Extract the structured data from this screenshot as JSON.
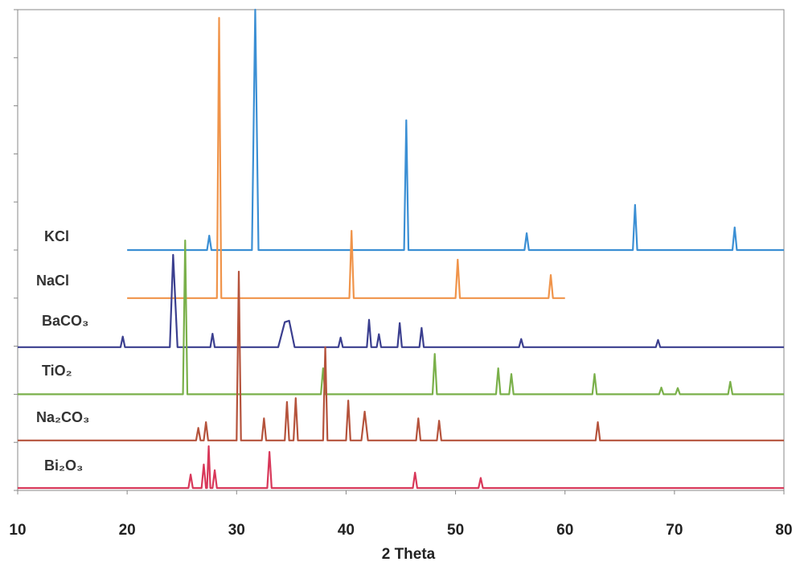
{
  "chart_data": {
    "type": "line",
    "xlabel": "2 Theta",
    "xlim": [
      10,
      80
    ],
    "xticks": [
      10,
      20,
      30,
      40,
      50,
      60,
      70,
      80
    ],
    "ylim": [
      0,
      100
    ],
    "series": [
      {
        "name": "KCl",
        "color": "#3b8fd4",
        "x": [
          20,
          27.3,
          27.5,
          27.7,
          31.4,
          31.7,
          32.0,
          45.3,
          45.5,
          45.7,
          56.3,
          56.5,
          56.7,
          66.2,
          66.4,
          66.6,
          75.3,
          75.5,
          75.7,
          80
        ],
        "values": [
          50,
          50,
          53,
          50,
          50,
          100,
          50,
          50,
          77,
          50,
          50,
          53.5,
          50,
          50,
          59.4,
          50,
          50,
          54.7,
          50,
          50
        ]
      },
      {
        "name": "NaCl",
        "color": "#f0944a",
        "x": [
          20,
          28.2,
          28.4,
          28.6,
          40.3,
          40.5,
          40.7,
          50,
          50.2,
          50.4,
          58.5,
          58.7,
          58.9,
          60
        ],
        "values": [
          40,
          40,
          98.3,
          40,
          40,
          54,
          40,
          40,
          48,
          40,
          40,
          44.8,
          40,
          40
        ]
      },
      {
        "name": "BaCO₃",
        "color": "#3b3f8f",
        "x": [
          10,
          19.4,
          19.6,
          19.8,
          23.9,
          24.2,
          24.6,
          27.6,
          27.8,
          28,
          33.8,
          34.4,
          34.8,
          35.3,
          39.3,
          39.5,
          39.7,
          41.9,
          42.1,
          42.3,
          42.8,
          43,
          43.2,
          44.7,
          44.9,
          45.1,
          46.7,
          46.9,
          47.1,
          55.8,
          56,
          56.2,
          68.3,
          68.5,
          68.7,
          80
        ],
        "values": [
          29.8,
          29.8,
          32,
          29.8,
          29.8,
          49,
          29.8,
          29.8,
          32.6,
          29.8,
          29.8,
          35,
          35.3,
          29.8,
          29.8,
          31.8,
          29.8,
          29.8,
          35.5,
          29.8,
          29.8,
          32.5,
          29.8,
          29.8,
          34.8,
          29.8,
          29.8,
          33.8,
          29.8,
          29.8,
          31.5,
          29.8,
          29.8,
          31.3,
          29.8,
          29.8
        ]
      },
      {
        "name": "TiO₂",
        "color": "#7ab04a",
        "x": [
          10,
          25.1,
          25.3,
          25.5,
          37.7,
          37.9,
          38.1,
          47.9,
          48.1,
          48.3,
          53.7,
          53.9,
          54.1,
          54.9,
          55.1,
          55.3,
          62.5,
          62.7,
          62.9,
          68.6,
          68.8,
          69,
          70.1,
          70.3,
          70.5,
          74.9,
          75.1,
          75.3,
          80
        ],
        "values": [
          20,
          20,
          52,
          20,
          20,
          25.4,
          20,
          20,
          28.4,
          20,
          20,
          25.4,
          20,
          20,
          24.2,
          20,
          20,
          24.2,
          20,
          20,
          21.4,
          20,
          20,
          21.3,
          20,
          20,
          22.6,
          20,
          20
        ]
      },
      {
        "name": "Na₂CO₃",
        "color": "#b5533c",
        "x": [
          10,
          26.3,
          26.5,
          26.7,
          27,
          27.2,
          27.4,
          30,
          30.2,
          30.4,
          32.3,
          32.5,
          32.7,
          34.4,
          34.6,
          34.8,
          35.2,
          35.4,
          35.6,
          37.9,
          38.1,
          38.3,
          40,
          40.2,
          40.4,
          41.4,
          41.7,
          42,
          46.4,
          46.6,
          46.8,
          48.3,
          48.5,
          48.7,
          62.8,
          63,
          63.2,
          80
        ],
        "values": [
          10.4,
          10.4,
          13,
          10.4,
          10.4,
          14.2,
          10.4,
          10.4,
          45.5,
          10.4,
          10.4,
          15,
          10.4,
          10.4,
          18.4,
          10.4,
          10.4,
          19.2,
          10.4,
          10.4,
          29.8,
          10.4,
          10.4,
          18.7,
          10.4,
          10.4,
          16.4,
          10.4,
          10.4,
          15,
          10.4,
          10.4,
          14.5,
          10.4,
          10.4,
          14.2,
          10.4,
          10.4
        ]
      },
      {
        "name": "Bi₂O₃",
        "color": "#d8385a",
        "x": [
          10,
          25.6,
          25.8,
          26,
          26.8,
          27,
          27.2,
          27.3,
          27.45,
          27.6,
          27.8,
          28,
          28.2,
          32.8,
          33,
          33.2,
          46.1,
          46.3,
          46.5,
          52.1,
          52.3,
          52.5,
          80
        ],
        "values": [
          0.5,
          0.5,
          3.3,
          0.5,
          0.5,
          5.4,
          0.5,
          0.5,
          9.2,
          0.5,
          0.5,
          4.2,
          0.5,
          0.5,
          8,
          0.5,
          0.5,
          3.7,
          0.5,
          0.5,
          2.6,
          0.5,
          0.5
        ]
      }
    ]
  }
}
